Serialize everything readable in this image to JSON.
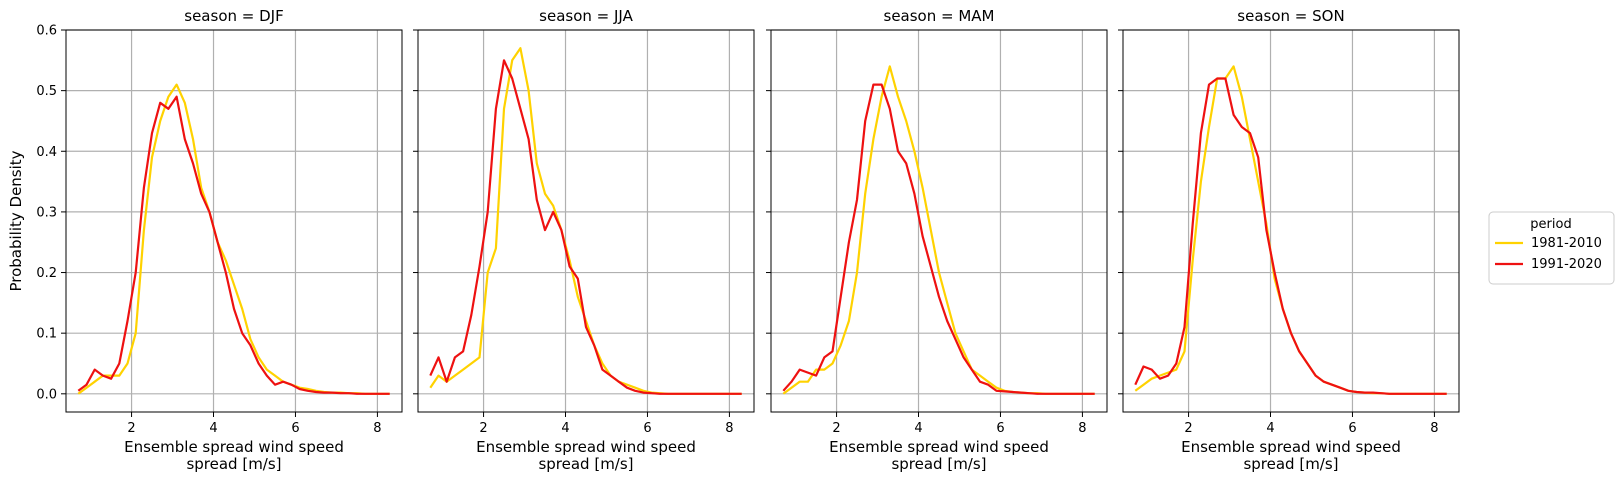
{
  "chart_data": {
    "type": "line",
    "facet_variable": "season",
    "title_template": "season = {facet}",
    "xlabel_lines": [
      "Ensemble spread wind speed",
      "spread [m/s]"
    ],
    "ylabel": "Probability Density",
    "xlim": [
      0.4,
      8.6
    ],
    "ylim": [
      -0.03,
      0.6
    ],
    "xticks": [
      2,
      4,
      6,
      8
    ],
    "yticks": [
      0.0,
      0.1,
      0.2,
      0.3,
      0.4,
      0.5,
      0.6
    ],
    "grid": true,
    "legend": {
      "title": "period",
      "placement": "right",
      "entries": [
        {
          "label": "1981-2010",
          "color": "#FFD200"
        },
        {
          "label": "1991-2020",
          "color": "#EE1111"
        }
      ]
    },
    "panels": [
      {
        "facet": "DJF",
        "series": [
          {
            "name": "1981-2010",
            "color": "#FFD200",
            "x": [
              0.7,
              0.9,
              1.1,
              1.3,
              1.5,
              1.7,
              1.9,
              2.1,
              2.3,
              2.5,
              2.7,
              2.9,
              3.1,
              3.3,
              3.5,
              3.7,
              3.9,
              4.1,
              4.3,
              4.5,
              4.7,
              4.9,
              5.1,
              5.3,
              5.5,
              5.7,
              5.9,
              6.1,
              6.3,
              6.5,
              6.7,
              6.9,
              7.1,
              7.3,
              7.5,
              7.7,
              7.9,
              8.1,
              8.3
            ],
            "y": [
              0.0,
              0.01,
              0.02,
              0.03,
              0.03,
              0.03,
              0.05,
              0.1,
              0.27,
              0.39,
              0.45,
              0.49,
              0.51,
              0.48,
              0.42,
              0.34,
              0.3,
              0.25,
              0.22,
              0.18,
              0.14,
              0.09,
              0.06,
              0.04,
              0.03,
              0.02,
              0.015,
              0.01,
              0.008,
              0.005,
              0.003,
              0.002,
              0.002,
              0.001,
              0.001,
              0.0,
              0.0,
              0.0,
              0.0
            ]
          },
          {
            "name": "1991-2020",
            "color": "#EE1111",
            "x": [
              0.7,
              0.9,
              1.1,
              1.3,
              1.5,
              1.7,
              1.9,
              2.1,
              2.3,
              2.5,
              2.7,
              2.9,
              3.1,
              3.3,
              3.5,
              3.7,
              3.9,
              4.1,
              4.3,
              4.5,
              4.7,
              4.9,
              5.1,
              5.3,
              5.5,
              5.7,
              5.9,
              6.1,
              6.3,
              6.5,
              6.7,
              6.9,
              7.1,
              7.3,
              7.5,
              7.7,
              7.9,
              8.1,
              8.3
            ],
            "y": [
              0.005,
              0.015,
              0.04,
              0.03,
              0.025,
              0.05,
              0.12,
              0.2,
              0.34,
              0.43,
              0.48,
              0.47,
              0.49,
              0.42,
              0.38,
              0.33,
              0.3,
              0.25,
              0.2,
              0.14,
              0.1,
              0.08,
              0.05,
              0.03,
              0.015,
              0.02,
              0.015,
              0.008,
              0.005,
              0.003,
              0.002,
              0.002,
              0.001,
              0.001,
              0.0,
              0.0,
              0.0,
              0.0,
              0.0
            ]
          }
        ]
      },
      {
        "facet": "JJA",
        "series": [
          {
            "name": "1981-2010",
            "color": "#FFD200",
            "x": [
              0.7,
              0.9,
              1.1,
              1.3,
              1.5,
              1.7,
              1.9,
              2.1,
              2.3,
              2.5,
              2.7,
              2.9,
              3.1,
              3.3,
              3.5,
              3.7,
              3.9,
              4.1,
              4.3,
              4.5,
              4.7,
              4.9,
              5.1,
              5.3,
              5.5,
              5.7,
              5.9,
              6.1,
              6.3,
              6.5,
              6.7,
              6.9,
              7.1,
              7.3,
              7.5,
              7.7,
              7.9,
              8.1,
              8.3
            ],
            "y": [
              0.01,
              0.03,
              0.02,
              0.03,
              0.04,
              0.05,
              0.06,
              0.2,
              0.24,
              0.47,
              0.55,
              0.57,
              0.5,
              0.38,
              0.33,
              0.31,
              0.27,
              0.22,
              0.16,
              0.12,
              0.08,
              0.05,
              0.03,
              0.02,
              0.015,
              0.01,
              0.005,
              0.002,
              0.001,
              0.0,
              0.0,
              0.0,
              0.0,
              0.0,
              0.0,
              0.0,
              0.0,
              0.0,
              0.0
            ]
          },
          {
            "name": "1991-2020",
            "color": "#EE1111",
            "x": [
              0.7,
              0.9,
              1.1,
              1.3,
              1.5,
              1.7,
              1.9,
              2.1,
              2.3,
              2.5,
              2.7,
              2.9,
              3.1,
              3.3,
              3.5,
              3.7,
              3.9,
              4.1,
              4.3,
              4.5,
              4.7,
              4.9,
              5.1,
              5.3,
              5.5,
              5.7,
              5.9,
              6.1,
              6.3,
              6.5,
              6.7,
              6.9,
              7.1,
              7.3,
              7.5,
              7.7,
              7.9,
              8.1,
              8.3
            ],
            "y": [
              0.03,
              0.06,
              0.02,
              0.06,
              0.07,
              0.13,
              0.21,
              0.3,
              0.47,
              0.55,
              0.52,
              0.47,
              0.42,
              0.32,
              0.27,
              0.3,
              0.27,
              0.21,
              0.19,
              0.11,
              0.08,
              0.04,
              0.03,
              0.02,
              0.01,
              0.005,
              0.002,
              0.001,
              0.0,
              0.0,
              0.0,
              0.0,
              0.0,
              0.0,
              0.0,
              0.0,
              0.0,
              0.0,
              0.0
            ]
          }
        ]
      },
      {
        "facet": "MAM",
        "series": [
          {
            "name": "1981-2010",
            "color": "#FFD200",
            "x": [
              0.7,
              0.9,
              1.1,
              1.3,
              1.5,
              1.7,
              1.9,
              2.1,
              2.3,
              2.5,
              2.7,
              2.9,
              3.1,
              3.3,
              3.5,
              3.7,
              3.9,
              4.1,
              4.3,
              4.5,
              4.7,
              4.9,
              5.1,
              5.3,
              5.5,
              5.7,
              5.9,
              6.1,
              6.3,
              6.5,
              6.7,
              6.9,
              7.1,
              7.3,
              7.5,
              7.7,
              7.9,
              8.1,
              8.3
            ],
            "y": [
              0.0,
              0.01,
              0.02,
              0.02,
              0.04,
              0.04,
              0.05,
              0.08,
              0.12,
              0.2,
              0.33,
              0.42,
              0.49,
              0.54,
              0.49,
              0.45,
              0.4,
              0.34,
              0.27,
              0.2,
              0.15,
              0.1,
              0.07,
              0.04,
              0.03,
              0.02,
              0.01,
              0.005,
              0.003,
              0.002,
              0.001,
              0.001,
              0.0,
              0.0,
              0.0,
              0.0,
              0.0,
              0.0,
              0.0
            ]
          },
          {
            "name": "1991-2020",
            "color": "#EE1111",
            "x": [
              0.7,
              0.9,
              1.1,
              1.3,
              1.5,
              1.7,
              1.9,
              2.1,
              2.3,
              2.5,
              2.7,
              2.9,
              3.1,
              3.3,
              3.5,
              3.7,
              3.9,
              4.1,
              4.3,
              4.5,
              4.7,
              4.9,
              5.1,
              5.3,
              5.5,
              5.7,
              5.9,
              6.1,
              6.3,
              6.5,
              6.7,
              6.9,
              7.1,
              7.3,
              7.5,
              7.7,
              7.9,
              8.1,
              8.3
            ],
            "y": [
              0.005,
              0.02,
              0.04,
              0.035,
              0.03,
              0.06,
              0.07,
              0.16,
              0.25,
              0.32,
              0.45,
              0.51,
              0.51,
              0.47,
              0.4,
              0.38,
              0.33,
              0.26,
              0.21,
              0.16,
              0.12,
              0.09,
              0.06,
              0.04,
              0.02,
              0.015,
              0.005,
              0.004,
              0.003,
              0.002,
              0.001,
              0.0,
              0.0,
              0.0,
              0.0,
              0.0,
              0.0,
              0.0,
              0.0
            ]
          }
        ]
      },
      {
        "facet": "SON",
        "series": [
          {
            "name": "1981-2010",
            "color": "#FFD200",
            "x": [
              0.7,
              0.9,
              1.1,
              1.3,
              1.5,
              1.7,
              1.9,
              2.1,
              2.3,
              2.5,
              2.7,
              2.9,
              3.1,
              3.3,
              3.5,
              3.7,
              3.9,
              4.1,
              4.3,
              4.5,
              4.7,
              4.9,
              5.1,
              5.3,
              5.5,
              5.7,
              5.9,
              6.1,
              6.3,
              6.5,
              6.7,
              6.9,
              7.1,
              7.3,
              7.5,
              7.7,
              7.9,
              8.1,
              8.3
            ],
            "y": [
              0.005,
              0.015,
              0.025,
              0.03,
              0.035,
              0.04,
              0.07,
              0.22,
              0.35,
              0.44,
              0.52,
              0.52,
              0.54,
              0.49,
              0.42,
              0.35,
              0.28,
              0.19,
              0.14,
              0.1,
              0.07,
              0.05,
              0.03,
              0.02,
              0.015,
              0.01,
              0.005,
              0.003,
              0.002,
              0.001,
              0.001,
              0.0,
              0.0,
              0.0,
              0.0,
              0.0,
              0.0,
              0.0,
              0.0
            ]
          },
          {
            "name": "1991-2020",
            "color": "#EE1111",
            "x": [
              0.7,
              0.9,
              1.1,
              1.3,
              1.5,
              1.7,
              1.9,
              2.1,
              2.3,
              2.5,
              2.7,
              2.9,
              3.1,
              3.3,
              3.5,
              3.7,
              3.9,
              4.1,
              4.3,
              4.5,
              4.7,
              4.9,
              5.1,
              5.3,
              5.5,
              5.7,
              5.9,
              6.1,
              6.3,
              6.5,
              6.7,
              6.9,
              7.1,
              7.3,
              7.5,
              7.7,
              7.9,
              8.1,
              8.3
            ],
            "y": [
              0.015,
              0.045,
              0.04,
              0.025,
              0.03,
              0.05,
              0.11,
              0.28,
              0.43,
              0.51,
              0.52,
              0.52,
              0.46,
              0.44,
              0.43,
              0.39,
              0.27,
              0.2,
              0.14,
              0.1,
              0.07,
              0.05,
              0.03,
              0.02,
              0.015,
              0.01,
              0.005,
              0.003,
              0.002,
              0.002,
              0.001,
              0.0,
              0.0,
              0.0,
              0.0,
              0.0,
              0.0,
              0.0,
              0.0
            ]
          }
        ]
      }
    ]
  }
}
